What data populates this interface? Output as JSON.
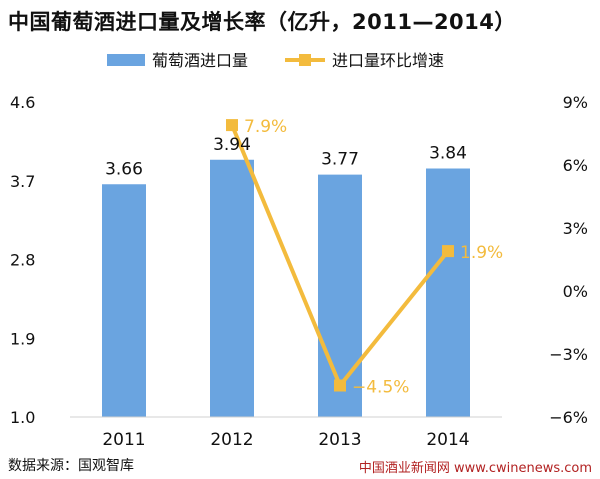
{
  "colors": {
    "bar": "#6aa4e0",
    "line": "#f3bb3d",
    "line_label": "#f3bb3d",
    "text": "#111111",
    "watermark": "#b22222"
  },
  "chart_data": {
    "type": "bar",
    "title": "中国葡萄酒进口量及增长率（亿升，2011—2014）",
    "categories": [
      "2011",
      "2012",
      "2013",
      "2014"
    ],
    "series": [
      {
        "name": "葡萄酒进口量",
        "type": "bar",
        "axis": "left",
        "values": [
          3.66,
          3.94,
          3.77,
          3.84
        ],
        "labels": [
          "3.66",
          "3.94",
          "3.77",
          "3.84"
        ]
      },
      {
        "name": "进口量环比增速",
        "type": "line",
        "axis": "right",
        "x": [
          "2012",
          "2013",
          "2014"
        ],
        "values": [
          7.9,
          -4.5,
          1.9
        ],
        "labels": [
          "7.9%",
          "−4.5%",
          "1.9%"
        ]
      }
    ],
    "left_axis": {
      "min": 1.0,
      "max": 4.6,
      "ticks": [
        1.0,
        1.9,
        2.8,
        3.7,
        4.6
      ],
      "tick_labels": [
        "1.0",
        "1.9",
        "2.8",
        "3.7",
        "4.6"
      ]
    },
    "right_axis": {
      "min": -6,
      "max": 9,
      "ticks": [
        -6,
        -3,
        0,
        3,
        6,
        9
      ],
      "tick_labels": [
        "−6%",
        "−3%",
        "0%",
        "3%",
        "6%",
        "9%"
      ]
    },
    "legend_position": "top-center",
    "grid": false
  },
  "footer": {
    "source": "数据来源：国观智库",
    "watermark": "中国酒业新闻网 www.cwinenews.com"
  }
}
